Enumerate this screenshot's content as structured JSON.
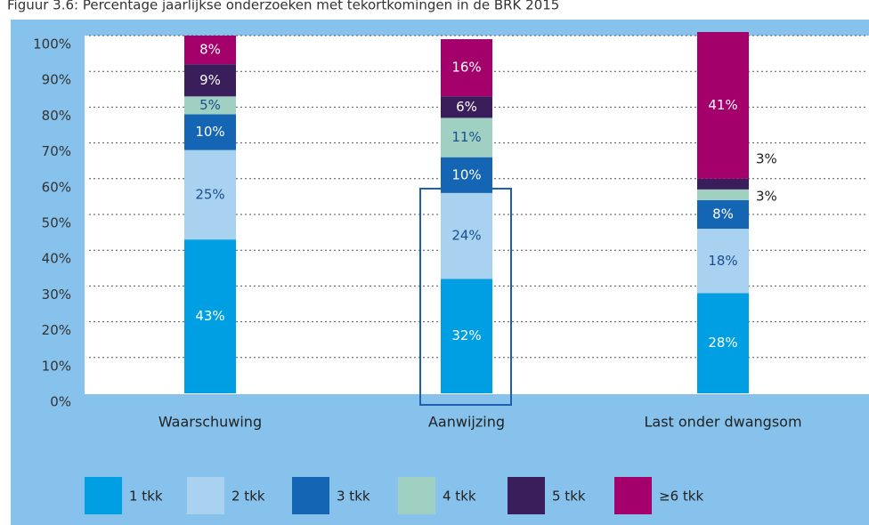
{
  "chart_data": {
    "type": "stacked_bar",
    "title": "Figuur 3.6: Percentage jaarlijkse onderzoeken met tekortkomingen in de BRK 2015",
    "categories": [
      "Waarschuwing",
      "Aanwijzing",
      "Last onder dwangsom"
    ],
    "series": [
      {
        "name": "1 tkk",
        "color": "#009fe3",
        "values": [
          43,
          32,
          28
        ],
        "value_labels": [
          "43%",
          "32%",
          "28%"
        ]
      },
      {
        "name": "2 tkk",
        "color": "#a9d2f1",
        "values": [
          25,
          24,
          18
        ],
        "value_labels": [
          "25%",
          "24%",
          "18%"
        ]
      },
      {
        "name": "3 tkk",
        "color": "#1565b5",
        "values": [
          10,
          10,
          8
        ],
        "value_labels": [
          "10%",
          "10%",
          "8%"
        ]
      },
      {
        "name": "4 tkk",
        "color": "#9fd0c1",
        "values": [
          5,
          11,
          3
        ],
        "value_labels": [
          "5%",
          "11%",
          "3%"
        ]
      },
      {
        "name": "5 tkk",
        "color": "#3a1d5b",
        "values": [
          9,
          6,
          3
        ],
        "value_labels": [
          "9%",
          "6%",
          "3%"
        ]
      },
      {
        "name": "≥6 tkk",
        "color": "#a3006b",
        "values": [
          8,
          16,
          41
        ],
        "value_labels": [
          "8%",
          "16%",
          "41%"
        ]
      }
    ],
    "ylim": [
      0,
      100
    ],
    "yticks": [
      {
        "value": 0,
        "label": "0%"
      },
      {
        "value": 10,
        "label": "10%"
      },
      {
        "value": 20,
        "label": "20%"
      },
      {
        "value": 30,
        "label": "30%"
      },
      {
        "value": 40,
        "label": "40%"
      },
      {
        "value": 50,
        "label": "50%"
      },
      {
        "value": 60,
        "label": "60%"
      },
      {
        "value": 70,
        "label": "70%"
      },
      {
        "value": 80,
        "label": "80%"
      },
      {
        "value": 90,
        "label": "90%"
      },
      {
        "value": 100,
        "label": "100%"
      }
    ],
    "grid": true
  }
}
